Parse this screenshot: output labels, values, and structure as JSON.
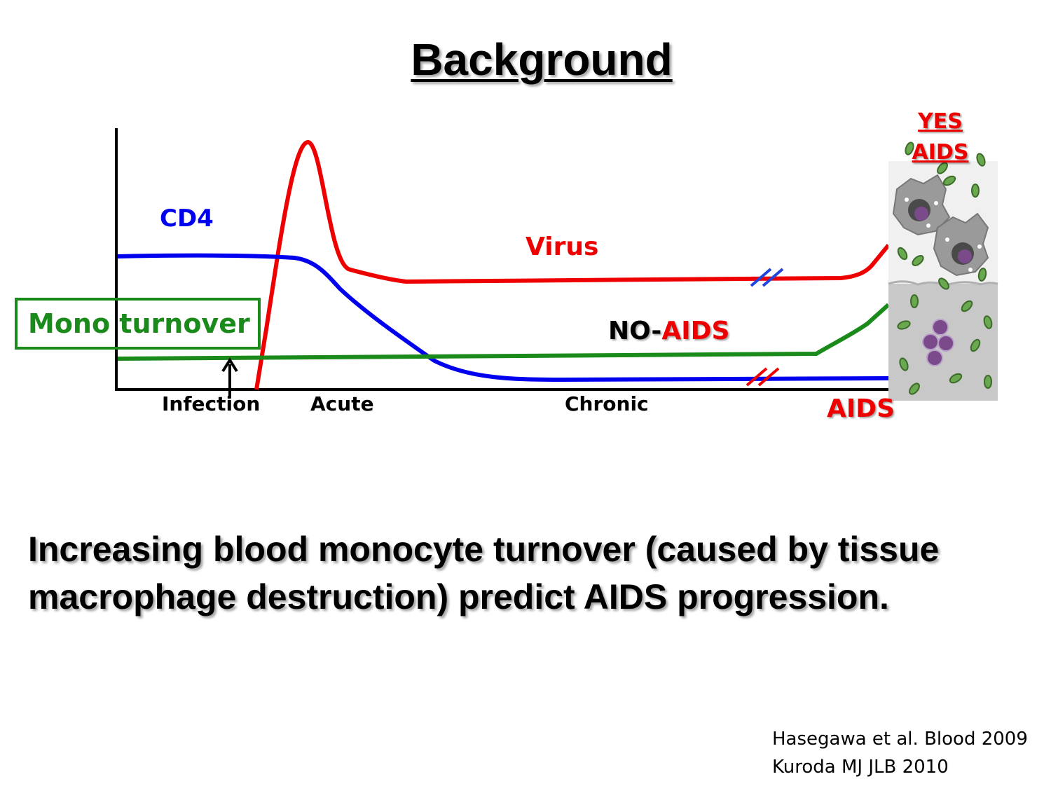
{
  "title": "Background",
  "labels": {
    "cd4": "CD4",
    "virus": "Virus",
    "no_prefix": "NO-",
    "no_aids_suffix": "AIDS",
    "aids": "AIDS",
    "yes": "YES",
    "yes_aids": "AIDS",
    "mono_turnover": "Mono turnover"
  },
  "axis_ticks": [
    "Infection",
    "Acute",
    "Chronic"
  ],
  "statement": "Increasing blood monocyte turnover (caused by tissue macrophage destruction) predict AIDS progression.",
  "references": [
    "Hasegawa et al. Blood 2009",
    "Kuroda MJ JLB 2010"
  ],
  "colors": {
    "virus": "#ee0000",
    "cd4": "#0000ee",
    "monocyte": "#1a8a1a",
    "axis": "#000000"
  }
}
